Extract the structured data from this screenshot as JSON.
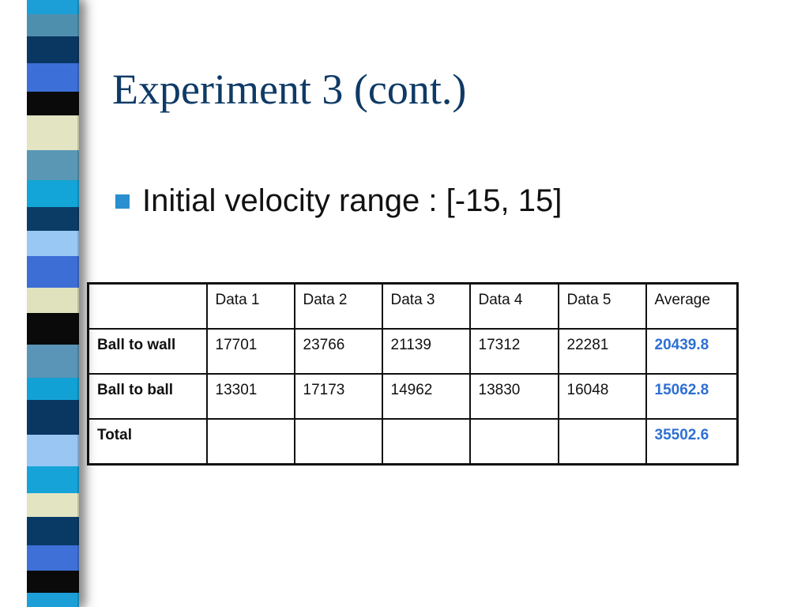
{
  "slide": {
    "title": "Experiment 3 (cont.)",
    "bullet": "Initial velocity range : [-15, 15]"
  },
  "decoration": {
    "stripe_colors": [
      "#1b9fd6",
      "#4f8fae",
      "#093762",
      "#3c6fd8",
      "#0a0a0a",
      "#e2e4c2",
      "#5a97b4",
      "#13a4d8",
      "#0a3c66",
      "#99c8f5",
      "#3d6ed6",
      "#e0e2be",
      "#0a0a0a",
      "#5a94b6",
      "#12a1d4",
      "#093762",
      "#99c6f3",
      "#16a3d8",
      "#e2e4c2",
      "#093a66",
      "#3e70d8",
      "#0a0a0a"
    ]
  },
  "table": {
    "headers": [
      "",
      "Data 1",
      "Data 2",
      "Data 3",
      "Data 4",
      "Data 5",
      "Average"
    ],
    "rows": [
      {
        "label": "Ball to wall",
        "values": [
          "17701",
          "23766",
          "21139",
          "17312",
          "22281"
        ],
        "average": "20439.8"
      },
      {
        "label": "Ball to ball",
        "values": [
          "13301",
          "17173",
          "14962",
          "13830",
          "16048"
        ],
        "average": "15062.8"
      },
      {
        "label": "Total",
        "values": [
          "",
          "",
          "",
          "",
          ""
        ],
        "average": "35502.6"
      }
    ],
    "average_color": "#2e6fd4"
  }
}
